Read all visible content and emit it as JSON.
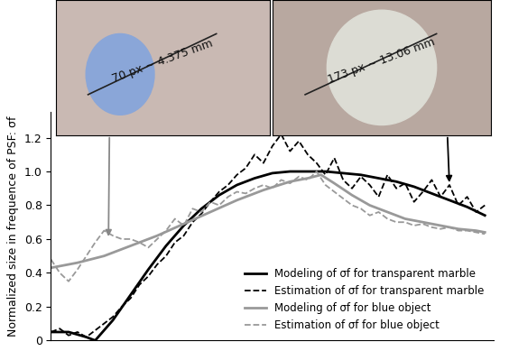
{
  "chart_data": {
    "type": "line",
    "y_label": "Normalized size in frequence of PSF: σf",
    "xlim": [
      0,
      100
    ],
    "ylim": [
      0,
      1.35
    ],
    "yticks": [
      0,
      0.2,
      0.4,
      0.6,
      0.8,
      1.0,
      1.2
    ],
    "tick_labels": "y",
    "legend": "lower right",
    "series": [
      {
        "name": "Modeling of σf for transparent marble",
        "color": "#000000",
        "line_style": "solid",
        "x": [
          0,
          4,
          8,
          10,
          14,
          18,
          22,
          26,
          30,
          34,
          38,
          42,
          46,
          50,
          54,
          58,
          62,
          66,
          70,
          74,
          78,
          82,
          86,
          90,
          94,
          98
        ],
        "values": [
          0.05,
          0.05,
          0.02,
          0.0,
          0.12,
          0.27,
          0.42,
          0.56,
          0.68,
          0.78,
          0.86,
          0.92,
          0.96,
          0.99,
          1.0,
          1.0,
          1.0,
          0.99,
          0.98,
          0.96,
          0.94,
          0.91,
          0.87,
          0.83,
          0.79,
          0.74
        ]
      },
      {
        "name": "Estimation of σf for transparent marble",
        "color": "#000000",
        "line_style": "dashed",
        "x": [
          0,
          2,
          4,
          6,
          8,
          10,
          12,
          14,
          16,
          18,
          20,
          22,
          24,
          26,
          28,
          30,
          32,
          34,
          36,
          38,
          40,
          42,
          44,
          46,
          48,
          50,
          52,
          54,
          56,
          58,
          60,
          62,
          64,
          66,
          68,
          70,
          72,
          74,
          76,
          78,
          80,
          82,
          84,
          86,
          88,
          90,
          92,
          94,
          96,
          98
        ],
        "values": [
          0.05,
          0.07,
          0.03,
          0.05,
          0.02,
          0.06,
          0.1,
          0.14,
          0.2,
          0.25,
          0.33,
          0.38,
          0.45,
          0.5,
          0.58,
          0.62,
          0.7,
          0.75,
          0.82,
          0.88,
          0.92,
          0.98,
          1.02,
          1.1,
          1.05,
          1.15,
          1.22,
          1.12,
          1.18,
          1.1,
          1.05,
          0.98,
          1.08,
          0.95,
          0.9,
          0.97,
          0.92,
          0.85,
          0.98,
          0.9,
          0.93,
          0.82,
          0.88,
          0.95,
          0.85,
          0.92,
          0.8,
          0.85,
          0.76,
          0.8
        ]
      },
      {
        "name": "Modeling of σf for blue object",
        "color": "#999999",
        "line_style": "solid",
        "x": [
          0,
          6,
          12,
          18,
          24,
          30,
          36,
          42,
          48,
          54,
          58,
          61,
          64,
          68,
          72,
          76,
          80,
          84,
          88,
          92,
          96,
          98
        ],
        "values": [
          0.43,
          0.46,
          0.5,
          0.56,
          0.62,
          0.69,
          0.76,
          0.83,
          0.89,
          0.94,
          0.96,
          0.98,
          0.93,
          0.86,
          0.8,
          0.76,
          0.72,
          0.7,
          0.68,
          0.66,
          0.65,
          0.64
        ]
      },
      {
        "name": "Estimation of σf for blue object",
        "color": "#999999",
        "line_style": "dashed",
        "x": [
          0,
          2,
          4,
          6,
          8,
          10,
          12,
          14,
          16,
          18,
          20,
          22,
          24,
          26,
          28,
          30,
          32,
          34,
          36,
          38,
          40,
          42,
          44,
          46,
          48,
          50,
          52,
          54,
          56,
          58,
          60,
          62,
          64,
          66,
          68,
          70,
          72,
          74,
          76,
          78,
          80,
          82,
          84,
          86,
          88,
          90,
          92,
          94,
          96,
          98
        ],
        "values": [
          0.48,
          0.4,
          0.35,
          0.42,
          0.5,
          0.58,
          0.65,
          0.62,
          0.6,
          0.6,
          0.58,
          0.55,
          0.6,
          0.65,
          0.72,
          0.68,
          0.78,
          0.76,
          0.82,
          0.8,
          0.85,
          0.88,
          0.87,
          0.9,
          0.92,
          0.9,
          0.95,
          0.93,
          0.97,
          0.95,
          1.0,
          0.92,
          0.88,
          0.84,
          0.8,
          0.78,
          0.74,
          0.76,
          0.72,
          0.7,
          0.7,
          0.68,
          0.69,
          0.67,
          0.66,
          0.67,
          0.65,
          0.65,
          0.64,
          0.63
        ]
      }
    ],
    "annotations": [
      {
        "text": "70 px ~ 4.375 mm",
        "x": 13,
        "y": 0.6
      },
      {
        "text": "173 px ~ 13.06 mm",
        "x": 90,
        "y": 0.92
      }
    ]
  }
}
